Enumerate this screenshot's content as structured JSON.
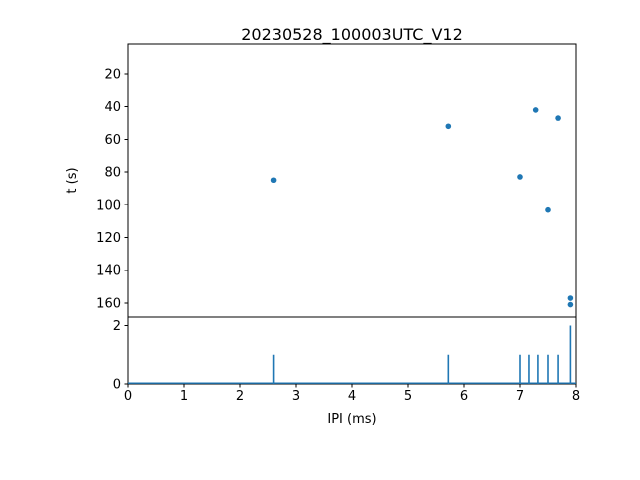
{
  "figure": {
    "title": "20230528_100003UTC_V12",
    "background_color": "#ffffff",
    "accent_color": "#1f77b4",
    "axis_color": "#000000"
  },
  "chart_data": [
    {
      "type": "scatter",
      "name": "ipi-vs-time-scatter",
      "title": "20230528_100003UTC_V12",
      "xlabel": "",
      "ylabel": "t (s)",
      "xlim": [
        0,
        8
      ],
      "ylim": [
        168.6,
        1.7
      ],
      "y_axis_inverted": true,
      "yticks": [
        20,
        40,
        60,
        80,
        100,
        120,
        140,
        160
      ],
      "grid": false,
      "marker_color": "#1f77b4",
      "points": [
        {
          "x": 2.6,
          "y": 85
        },
        {
          "x": 5.72,
          "y": 52
        },
        {
          "x": 7.0,
          "y": 83
        },
        {
          "x": 7.28,
          "y": 42
        },
        {
          "x": 7.5,
          "y": 103
        },
        {
          "x": 7.68,
          "y": 47
        },
        {
          "x": 7.9,
          "y": 157
        },
        {
          "x": 7.9,
          "y": 161
        }
      ]
    },
    {
      "type": "line",
      "name": "ipi-count-spikes",
      "xlabel": "IPI (ms)",
      "ylabel": "",
      "xlim": [
        0,
        8
      ],
      "ylim": [
        0,
        2.29
      ],
      "yticks": [
        0,
        2
      ],
      "xticks": [
        0,
        1,
        2,
        3,
        4,
        5,
        6,
        7,
        8
      ],
      "grid": false,
      "line_color": "#1f77b4",
      "baseline_value": 0,
      "spikes": [
        {
          "x": 2.6,
          "count": 1
        },
        {
          "x": 5.72,
          "count": 1
        },
        {
          "x": 7.0,
          "count": 1
        },
        {
          "x": 7.16,
          "count": 1
        },
        {
          "x": 7.32,
          "count": 1
        },
        {
          "x": 7.5,
          "count": 1
        },
        {
          "x": 7.68,
          "count": 1
        },
        {
          "x": 7.9,
          "count": 2
        }
      ]
    }
  ]
}
